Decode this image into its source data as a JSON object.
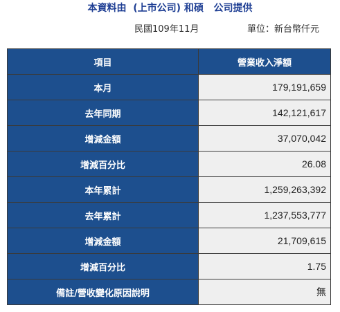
{
  "header": {
    "title": "本資料由  (上市公司) 和碩   公司提供",
    "date": "民國109年11月",
    "unit": "單位：新台幣仟元"
  },
  "table": {
    "headers": [
      "項目",
      "營業收入淨額"
    ],
    "rows": [
      {
        "label": "本月",
        "value": "179,191,659"
      },
      {
        "label": "去年同期",
        "value": "142,121,617"
      },
      {
        "label": "增減金額",
        "value": "37,070,042"
      },
      {
        "label": "增減百分比",
        "value": "26.08"
      },
      {
        "label": "本年累計",
        "value": "1,259,263,392"
      },
      {
        "label": "去年累計",
        "value": "1,237,553,777"
      },
      {
        "label": "增減金額",
        "value": "21,709,615"
      },
      {
        "label": "增減百分比",
        "value": "1.75"
      },
      {
        "label": "備註/營收變化原因說明",
        "value": "無"
      }
    ]
  }
}
